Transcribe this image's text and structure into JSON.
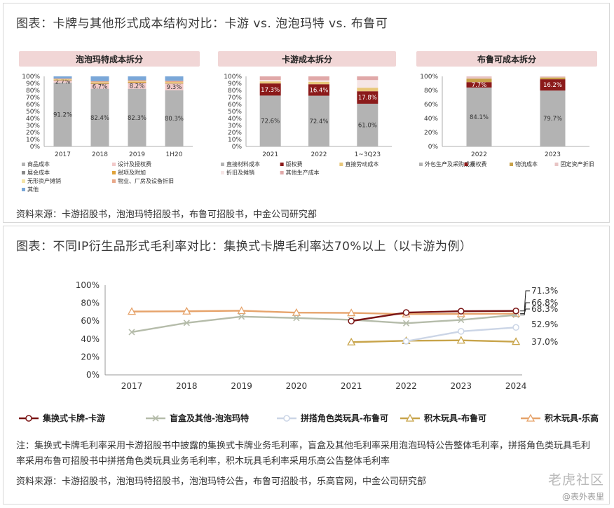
{
  "top": {
    "title": "图表：卡牌与其他形式成本结构对比：卡游 vs. 泡泡玛特 vs. 布鲁可",
    "source": "资料来源：卡游招股书，泡泡玛特招股书，布鲁可招股书，中金公司研究部"
  },
  "bottom": {
    "title": "图表：不同IP衍生品形式毛利率对比：集换式卡牌毛利率达70%以上（以卡游为例）",
    "note": "注：集换式卡牌毛利率采用卡游招股书中披露的集换式卡牌业务毛利率，盲盒及其他毛利率采用泡泡玛特公告整体毛利率，拼搭角色类玩具毛利率采用布鲁可招股书中拼搭角色类玩具业务毛利率，积木玩具毛利率采用乐高公告整体毛利率",
    "source": "资料来源：卡游招股书，泡泡玛特招股书，泡泡玛特公告，布鲁可招股书，乐高官网，中金公司研究部"
  },
  "watermark": {
    "main": "老虎社区",
    "sub": "@表外表里"
  },
  "chart_data": [
    {
      "type": "bar",
      "stacked": true,
      "title": "泡泡玛特成本拆分",
      "categories": [
        "2017",
        "2018",
        "2019",
        "1H20"
      ],
      "ylim": [
        0,
        100
      ],
      "yticks": [
        "0%",
        "10%",
        "20%",
        "30%",
        "40%",
        "50%",
        "60%",
        "70%",
        "80%",
        "90%",
        "100%"
      ],
      "series": [
        {
          "name": "商品成本",
          "color": "#b3b3b3",
          "values": [
            91.2,
            82.4,
            82.3,
            80.3
          ],
          "labels": [
            "91.2%",
            "82.4%",
            "82.3%",
            "80.3%"
          ]
        },
        {
          "name": "设计及授权费",
          "color": "#f2c9c9",
          "values": [
            2.7,
            6.7,
            8.2,
            9.3
          ],
          "labels": [
            "2.7%",
            "6.7%",
            "8.2%",
            "9.3%"
          ]
        },
        {
          "name": "展会成本",
          "color": "#8a8a8a",
          "values": [
            0.5,
            0.5,
            0.5,
            0.3
          ],
          "labels": []
        },
        {
          "name": "税项及附加",
          "color": "#e0a33a",
          "values": [
            1.0,
            1.5,
            1.4,
            1.5
          ],
          "labels": []
        },
        {
          "name": "无形资产摊销",
          "color": "#f4e4a8",
          "values": [
            0.5,
            0.5,
            0.5,
            0.5
          ],
          "labels": []
        },
        {
          "name": "物业、厂房及设备折旧",
          "color": "#e8a889",
          "values": [
            1.0,
            1.5,
            1.6,
            1.8
          ],
          "labels": []
        },
        {
          "name": "其他",
          "color": "#7aa7d8",
          "values": [
            3.1,
            6.9,
            5.5,
            6.3
          ],
          "labels": []
        }
      ],
      "legend": "bottom"
    },
    {
      "type": "bar",
      "stacked": true,
      "title": "卡游成本拆分",
      "categories": [
        "2021",
        "2022",
        "1~3Q23"
      ],
      "ylim": [
        0,
        100
      ],
      "yticks": [
        "0%",
        "10%",
        "20%",
        "30%",
        "40%",
        "50%",
        "60%",
        "70%",
        "80%",
        "90%",
        "100%"
      ],
      "series": [
        {
          "name": "直接材料成本",
          "color": "#b3b3b3",
          "values": [
            72.6,
            72.4,
            61.0
          ],
          "labels": [
            "72.6%",
            "72.4%",
            "61.0%"
          ]
        },
        {
          "name": "版权费",
          "color": "#8b1a1a",
          "values": [
            17.3,
            16.4,
            17.8
          ],
          "labels": [
            "17.3%",
            "16.4%",
            "17.8%"
          ]
        },
        {
          "name": "直接劳动成本",
          "color": "#e8c77a",
          "values": [
            3.0,
            3.5,
            5.0
          ],
          "labels": []
        },
        {
          "name": "折旧及摊销",
          "color": "#f6e6e6",
          "values": [
            2.0,
            2.0,
            11.0
          ],
          "labels": []
        },
        {
          "name": "其他生产成本",
          "color": "#e0a8a8",
          "values": [
            5.1,
            5.7,
            5.2
          ],
          "labels": []
        }
      ],
      "legend": "bottom"
    },
    {
      "type": "bar",
      "stacked": true,
      "title": "布鲁可成本拆分",
      "categories": [
        "2022",
        "2023"
      ],
      "ylim": [
        0,
        100
      ],
      "yticks": [
        "0%",
        "20%",
        "40%",
        "60%",
        "80%",
        "100%"
      ],
      "series": [
        {
          "name": "外包生产及采购成本",
          "color": "#b3b3b3",
          "values": [
            84.1,
            79.7
          ],
          "labels": [
            "84.1%",
            "79.7%"
          ]
        },
        {
          "name": "授权费",
          "color": "#8b1a1a",
          "values": [
            7.7,
            16.2
          ],
          "labels": [
            "7.7%",
            "16.2%"
          ]
        },
        {
          "name": "物流成本",
          "color": "#c9a24a",
          "values": [
            5.0,
            2.5
          ],
          "labels": []
        },
        {
          "name": "固定资产折旧",
          "color": "#e8c4c4",
          "values": [
            3.2,
            1.6
          ],
          "labels": []
        }
      ],
      "legend": "bottom"
    },
    {
      "type": "line",
      "x": [
        "2017",
        "2018",
        "2019",
        "2020",
        "2021",
        "2022",
        "2023",
        "2024"
      ],
      "ylim": [
        0,
        100
      ],
      "yticks": [
        "0%",
        "20%",
        "40%",
        "60%",
        "80%",
        "100%"
      ],
      "series": [
        {
          "name": "集换式卡牌-卡游",
          "color": "#7a1414",
          "marker": "circle",
          "values": [
            null,
            null,
            null,
            null,
            60.0,
            69.5,
            71.0,
            71.3
          ]
        },
        {
          "name": "盲盒及其他-泡泡玛特",
          "color": "#b5bcaa",
          "marker": "x",
          "values": [
            47.7,
            58.0,
            65.0,
            63.4,
            61.4,
            57.6,
            61.3,
            66.8
          ]
        },
        {
          "name": "拼搭角色类玩具-布鲁可",
          "color": "#cbd5e6",
          "marker": "circle",
          "values": [
            null,
            null,
            null,
            null,
            null,
            37.5,
            48.5,
            52.9
          ]
        },
        {
          "name": "积木玩具-布鲁可",
          "color": "#c8a44a",
          "marker": "triangle",
          "values": [
            null,
            null,
            null,
            null,
            36.5,
            38.0,
            38.5,
            37.0
          ]
        },
        {
          "name": "积木玩具-乐高",
          "color": "#e6a36b",
          "marker": "triangle",
          "values": [
            70.6,
            70.9,
            71.5,
            69.4,
            69.1,
            67.7,
            68.0,
            68.3
          ]
        }
      ],
      "end_labels": [
        "71.3%",
        "66.8%",
        "68.3%",
        "52.9%",
        "37.0%"
      ],
      "legend": "bottom"
    }
  ]
}
